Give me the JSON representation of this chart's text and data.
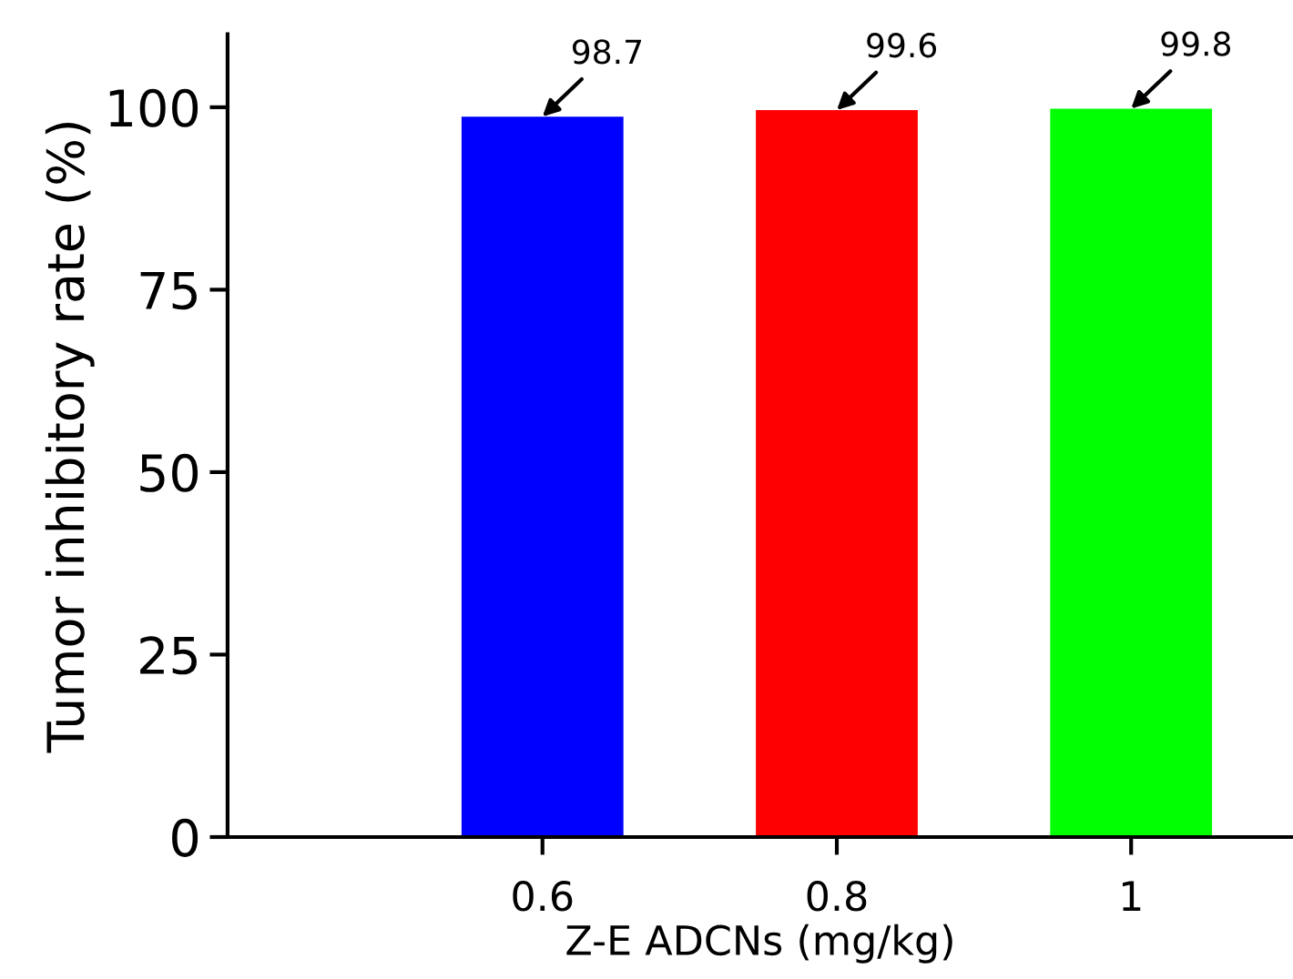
{
  "chart_data": {
    "type": "bar",
    "xlabel": "Z-E ADCNs (mg/kg)",
    "ylabel": "Tumor inhibitory rate (%)",
    "categories": [
      "0.6",
      "0.8",
      "1"
    ],
    "values": [
      98.7,
      99.6,
      99.8
    ],
    "colors": [
      "#0000ff",
      "#ff0000",
      "#00ff00"
    ],
    "ylim": [
      0,
      110
    ],
    "yticks": [
      0,
      25,
      50,
      75,
      100
    ],
    "data_labels": true,
    "grid": false,
    "legend": false
  }
}
